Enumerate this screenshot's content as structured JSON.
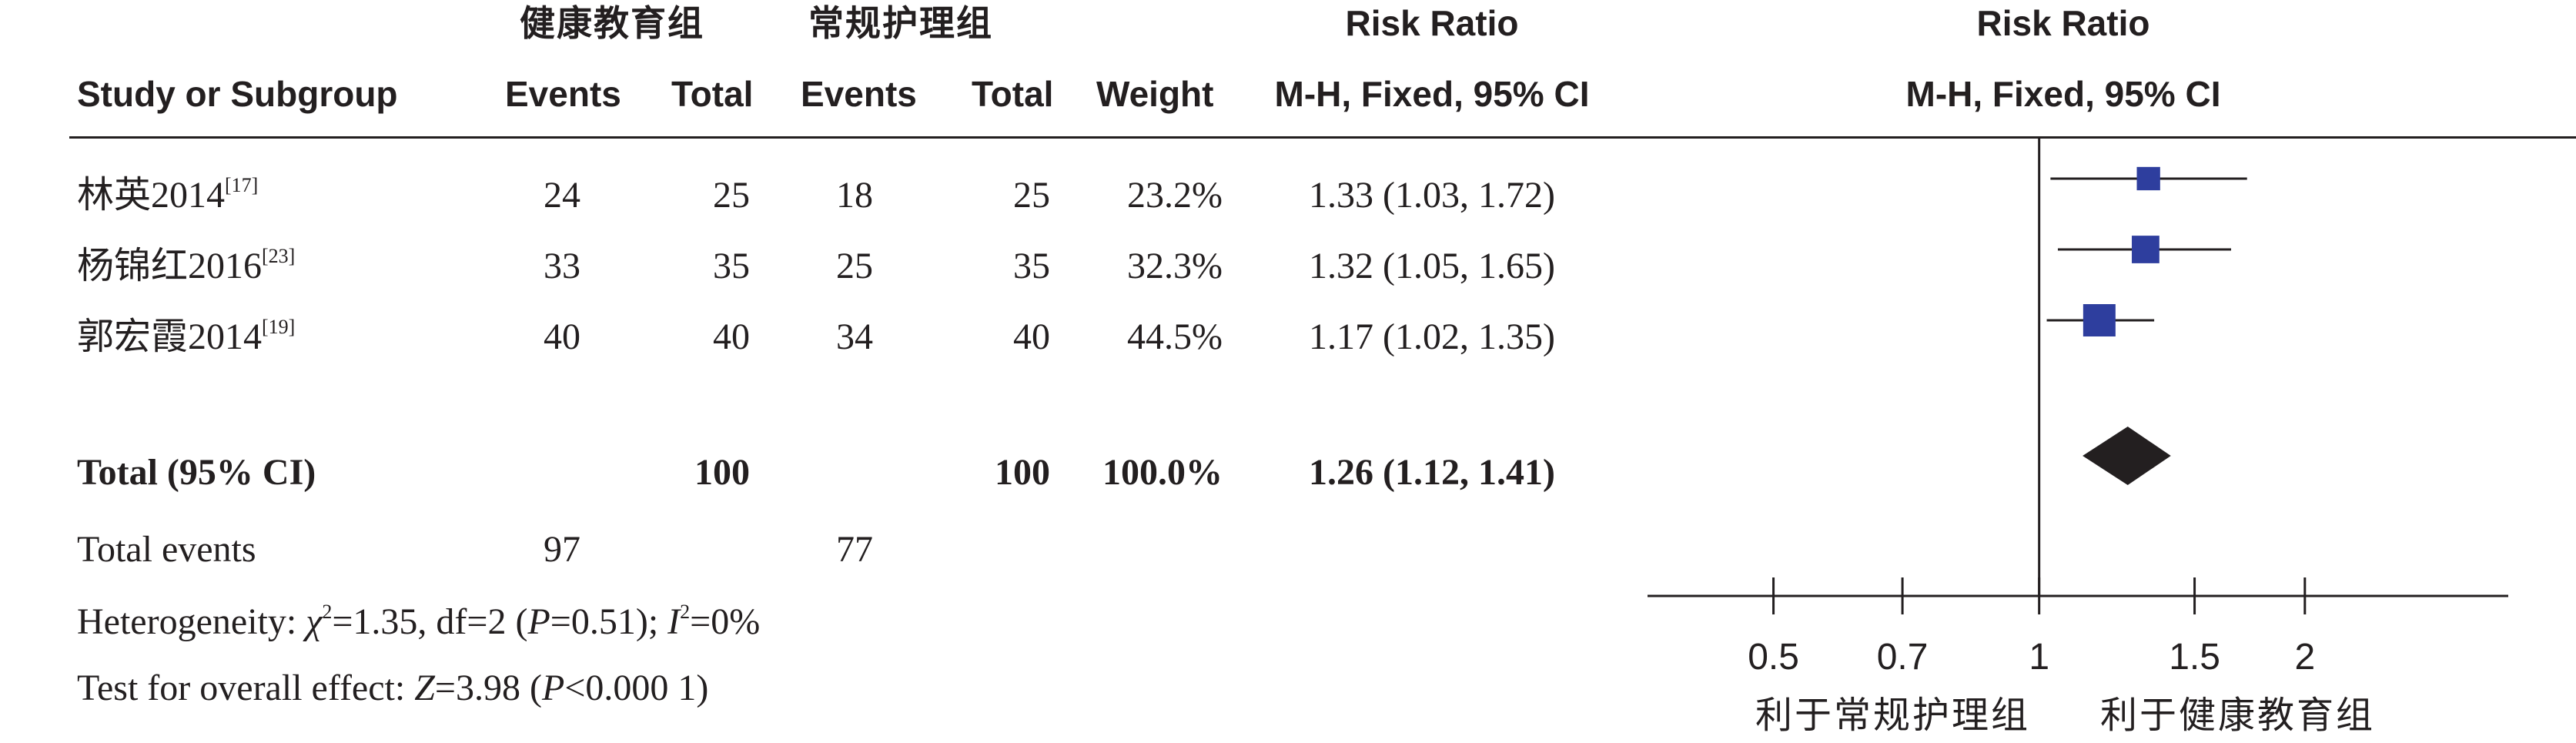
{
  "header": {
    "group_exp": "健康教育组",
    "group_ctrl": "常规护理组",
    "rr_title_table": "Risk Ratio",
    "rr_title_plot": "Risk Ratio",
    "study_col": "Study or Subgroup",
    "events_exp": "Events",
    "total_exp": "Total",
    "events_ctrl": "Events",
    "total_ctrl": "Total",
    "weight": "Weight",
    "method_table": "M-H, Fixed, 95% CI",
    "method_plot": "M-H, Fixed, 95% CI"
  },
  "studies": [
    {
      "name": "林英2014",
      "ref": "[17]",
      "events_exp": "24",
      "total_exp": "25",
      "events_ctrl": "18",
      "total_ctrl": "25",
      "weight": "23.2%",
      "ci_text": "1.33 (1.03, 1.72)"
    },
    {
      "name": "杨锦红2016",
      "ref": "[23]",
      "events_exp": "33",
      "total_exp": "35",
      "events_ctrl": "25",
      "total_ctrl": "35",
      "weight": "32.3%",
      "ci_text": "1.32 (1.05, 1.65)"
    },
    {
      "name": "郭宏霞2014",
      "ref": "[19]",
      "events_exp": "40",
      "total_exp": "40",
      "events_ctrl": "34",
      "total_ctrl": "40",
      "weight": "44.5%",
      "ci_text": "1.17 (1.02, 1.35)"
    }
  ],
  "total": {
    "label": "Total (95% CI)",
    "total_exp": "100",
    "total_ctrl": "100",
    "weight": "100.0%",
    "ci_text": "1.26 (1.12, 1.41)"
  },
  "total_events": {
    "label": "Total events",
    "events_exp": "97",
    "events_ctrl": "77"
  },
  "heterogeneity": {
    "prefix": "Heterogeneity: ",
    "chi_symbol": "χ",
    "chi_value": "=1.35, df=2 (",
    "p_symbol": "P",
    "p_value": "=0.51); ",
    "i_symbol": "I",
    "i_value": "=0%"
  },
  "overall_effect": {
    "prefix": "Test for overall effect: ",
    "z_symbol": "Z",
    "z_value": "=3.98 (",
    "p_symbol": "P",
    "p_value": "<0.000 1)"
  },
  "favours": {
    "left": "利于常规护理组",
    "right": "利于健康教育组"
  },
  "colors": {
    "marker": "#2e3e9e",
    "diamond": "#231f20",
    "text": "#231f20"
  },
  "chart_data": {
    "type": "scatter",
    "subtype": "forest-plot",
    "x_scale": "log",
    "xlim": [
      0.36,
      3.4
    ],
    "ticks": [
      0.5,
      0.7,
      1,
      1.5,
      2
    ],
    "tick_labels": [
      "0.5",
      "0.7",
      "1",
      "1.5",
      "2"
    ],
    "reference_line": 1,
    "studies": [
      {
        "rr": 1.33,
        "lower": 1.03,
        "upper": 1.72,
        "weight": 23.2
      },
      {
        "rr": 1.32,
        "lower": 1.05,
        "upper": 1.65,
        "weight": 32.3
      },
      {
        "rr": 1.17,
        "lower": 1.02,
        "upper": 1.35,
        "weight": 44.5
      }
    ],
    "pooled": {
      "rr": 1.26,
      "lower": 1.12,
      "upper": 1.41
    }
  }
}
